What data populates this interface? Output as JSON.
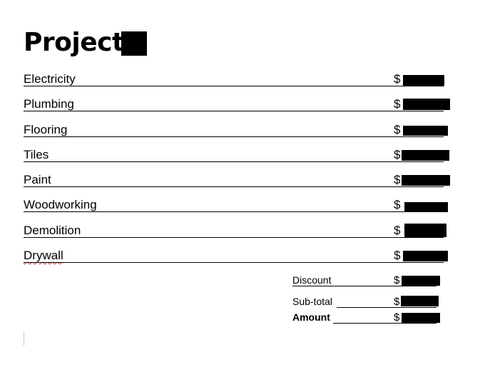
{
  "document": {
    "title": "Project",
    "currency_symbol": "$",
    "line_items": [
      {
        "label": "Electricity"
      },
      {
        "label": "Plumbing"
      },
      {
        "label": "Flooring"
      },
      {
        "label": "Tiles"
      },
      {
        "label": "Paint"
      },
      {
        "label": "Woodworking"
      },
      {
        "label": "Demolition"
      },
      {
        "label": "Drywall"
      }
    ],
    "summary": {
      "discount_label": "Discount",
      "subtotal_label": "Sub-total",
      "amount_label": "Amount"
    },
    "colors": {
      "text": "#000000",
      "redaction": "#000000",
      "spellcheck": "#d23b3b"
    }
  }
}
